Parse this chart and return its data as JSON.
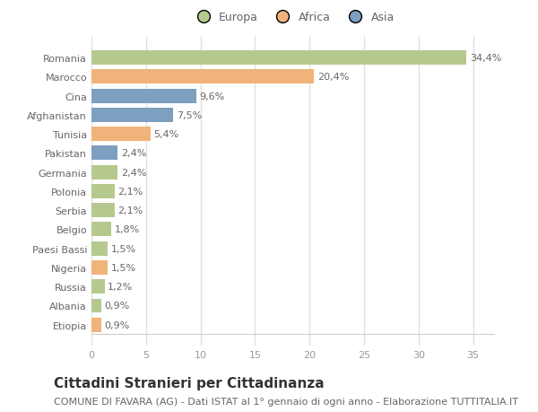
{
  "countries": [
    "Romania",
    "Marocco",
    "Cina",
    "Afghanistan",
    "Tunisia",
    "Pakistan",
    "Germania",
    "Polonia",
    "Serbia",
    "Belgio",
    "Paesi Bassi",
    "Nigeria",
    "Russia",
    "Albania",
    "Etiopia"
  ],
  "values": [
    34.4,
    20.4,
    9.6,
    7.5,
    5.4,
    2.4,
    2.4,
    2.1,
    2.1,
    1.8,
    1.5,
    1.5,
    1.2,
    0.9,
    0.9
  ],
  "labels": [
    "34,4%",
    "20,4%",
    "9,6%",
    "7,5%",
    "5,4%",
    "2,4%",
    "2,4%",
    "2,1%",
    "2,1%",
    "1,8%",
    "1,5%",
    "1,5%",
    "1,2%",
    "0,9%",
    "0,9%"
  ],
  "colors": [
    "#b5c98e",
    "#f0b47a",
    "#7d9fc0",
    "#7d9fc0",
    "#f0b47a",
    "#7d9fc0",
    "#b5c98e",
    "#b5c98e",
    "#b5c98e",
    "#b5c98e",
    "#b5c98e",
    "#f0b47a",
    "#b5c98e",
    "#b5c98e",
    "#f0b47a"
  ],
  "legend_labels": [
    "Europa",
    "Africa",
    "Asia"
  ],
  "legend_colors": [
    "#b5c98e",
    "#f0b47a",
    "#7d9fc0"
  ],
  "title": "Cittadini Stranieri per Cittadinanza",
  "subtitle": "COMUNE DI FAVARA (AG) - Dati ISTAT al 1° gennaio di ogni anno - Elaborazione TUTTITALIA.IT",
  "xlim": [
    0,
    37
  ],
  "xticks": [
    0,
    5,
    10,
    15,
    20,
    25,
    30,
    35
  ],
  "figure_bg": "#ffffff",
  "plot_bg": "#ffffff",
  "grid_color": "#e0e0e0",
  "title_fontsize": 11,
  "subtitle_fontsize": 8,
  "label_fontsize": 8,
  "tick_fontsize": 8,
  "legend_fontsize": 9
}
